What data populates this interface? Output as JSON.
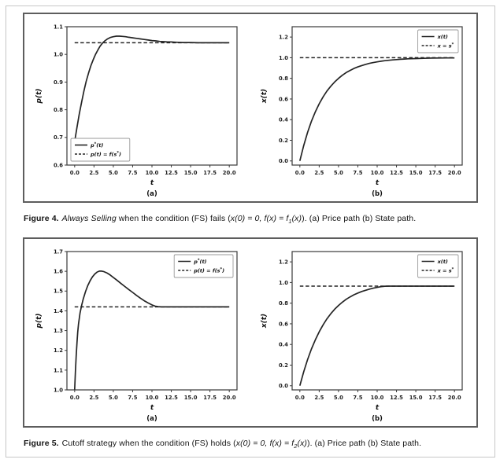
{
  "page": {
    "captions": {
      "fig4": {
        "segments": [
          {
            "t": "Figure 4.",
            "s": "bold"
          },
          {
            "t": "Always Selling",
            "s": "italic"
          },
          {
            "t": " when the condition (FS) fails (",
            "s": "normal"
          },
          {
            "t": "x(0) = 0, f(x) = f",
            "s": "mathit"
          },
          {
            "t": "1",
            "s": "sub"
          },
          {
            "t": "(x)",
            "s": "mathit"
          },
          {
            "t": "). (a) Price path (b) State path.",
            "s": "normal"
          }
        ]
      },
      "fig5": {
        "segments": [
          {
            "t": "Figure 5.",
            "s": "bold"
          },
          {
            "t": "Cutoff strategy when the condition (FS) holds (",
            "s": "normal"
          },
          {
            "t": "x(0) = 0, f(x) = f",
            "s": "mathit"
          },
          {
            "t": "2",
            "s": "sub"
          },
          {
            "t": "(x)",
            "s": "mathit"
          },
          {
            "t": "). (a) Price path (b) State path.",
            "s": "normal"
          }
        ]
      }
    },
    "colors": {
      "line": "#242424",
      "frame": "#3a3a3a",
      "panel_border": "#5d5d5d",
      "page_border": "#c6c6c6",
      "legend_border": "#999999"
    }
  },
  "chart_data": [
    {
      "id": "fig4a-price-path",
      "type": "line",
      "figure": "Figure 4",
      "panel_label": "(a)",
      "xlabel": "t",
      "ylabel": "p(t)",
      "xlim": [
        -1,
        21
      ],
      "ylim": [
        0.6,
        1.1
      ],
      "xticks": [
        0,
        2.5,
        5,
        7.5,
        10,
        12.5,
        15,
        17.5,
        20
      ],
      "yticks": [
        0.6,
        0.7,
        0.8,
        0.9,
        1.0,
        1.1
      ],
      "legend_position": "lower-left",
      "series": [
        {
          "name": "p*(t)",
          "dash": false,
          "points": [
            [
              0,
              0.685
            ],
            [
              0.3,
              0.737
            ],
            [
              0.6,
              0.785
            ],
            [
              0.9,
              0.828
            ],
            [
              1.2,
              0.868
            ],
            [
              1.5,
              0.903
            ],
            [
              1.8,
              0.933
            ],
            [
              2.1,
              0.959
            ],
            [
              2.4,
              0.981
            ],
            [
              2.7,
              1.0
            ],
            [
              3.0,
              1.016
            ],
            [
              3.3,
              1.03
            ],
            [
              3.6,
              1.041
            ],
            [
              3.9,
              1.049
            ],
            [
              4.2,
              1.055
            ],
            [
              4.6,
              1.061
            ],
            [
              5.0,
              1.064
            ],
            [
              5.4,
              1.066
            ],
            [
              5.8,
              1.066
            ],
            [
              6.2,
              1.065
            ],
            [
              6.6,
              1.064
            ],
            [
              7.0,
              1.062
            ],
            [
              7.5,
              1.06
            ],
            [
              8.0,
              1.058
            ],
            [
              8.5,
              1.056
            ],
            [
              9.0,
              1.054
            ],
            [
              9.5,
              1.052
            ],
            [
              10.0,
              1.05
            ],
            [
              10.5,
              1.049
            ],
            [
              11.0,
              1.047
            ],
            [
              11.5,
              1.046
            ],
            [
              12.0,
              1.045
            ],
            [
              12.5,
              1.045
            ],
            [
              13.0,
              1.044
            ],
            [
              14.0,
              1.043
            ],
            [
              15.0,
              1.043
            ],
            [
              16.0,
              1.042
            ],
            [
              17.0,
              1.042
            ],
            [
              18.0,
              1.042
            ],
            [
              19.0,
              1.042
            ],
            [
              20.0,
              1.042
            ]
          ]
        },
        {
          "name": "p(t) = f(s*)",
          "dash": true,
          "points": [
            [
              0,
              1.042
            ],
            [
              20,
              1.042
            ]
          ]
        }
      ]
    },
    {
      "id": "fig4b-state-path",
      "type": "line",
      "figure": "Figure 4",
      "panel_label": "(b)",
      "xlabel": "t",
      "ylabel": "x(t)",
      "xlim": [
        -1,
        21
      ],
      "ylim": [
        -0.04,
        1.3
      ],
      "xticks": [
        0,
        2.5,
        5,
        7.5,
        10,
        12.5,
        15,
        17.5,
        20
      ],
      "yticks": [
        0.0,
        0.2,
        0.4,
        0.6,
        0.8,
        1.0,
        1.2
      ],
      "legend_position": "upper-right",
      "series": [
        {
          "name": "x(t)",
          "dash": false,
          "points": [
            [
              0,
              0
            ],
            [
              0.5,
              0.149
            ],
            [
              1,
              0.276
            ],
            [
              1.5,
              0.384
            ],
            [
              2,
              0.476
            ],
            [
              2.5,
              0.554
            ],
            [
              3,
              0.62
            ],
            [
              3.5,
              0.677
            ],
            [
              4,
              0.724
            ],
            [
              4.5,
              0.765
            ],
            [
              5,
              0.8
            ],
            [
              5.5,
              0.83
            ],
            [
              6,
              0.856
            ],
            [
              6.5,
              0.877
            ],
            [
              7,
              0.896
            ],
            [
              7.5,
              0.911
            ],
            [
              8,
              0.924
            ],
            [
              8.5,
              0.935
            ],
            [
              9,
              0.945
            ],
            [
              9.5,
              0.953
            ],
            [
              10,
              0.96
            ],
            [
              10.5,
              0.966
            ],
            [
              11,
              0.971
            ],
            [
              11.5,
              0.975
            ],
            [
              12,
              0.979
            ],
            [
              12.5,
              0.982
            ],
            [
              13,
              0.985
            ],
            [
              13.5,
              0.987
            ],
            [
              14,
              0.989
            ],
            [
              15,
              0.992
            ],
            [
              16,
              0.994
            ],
            [
              17,
              0.996
            ],
            [
              18,
              0.997
            ],
            [
              19,
              0.998
            ],
            [
              20,
              0.998
            ]
          ]
        },
        {
          "name": "x = s*",
          "dash": true,
          "points": [
            [
              0,
              1.0
            ],
            [
              20,
              1.0
            ]
          ]
        }
      ]
    },
    {
      "id": "fig5a-price-path",
      "type": "line",
      "figure": "Figure 5",
      "panel_label": "(a)",
      "xlabel": "t",
      "ylabel": "p(t)",
      "xlim": [
        -1,
        21
      ],
      "ylim": [
        1.0,
        1.7
      ],
      "xticks": [
        0,
        2.5,
        5,
        7.5,
        10,
        12.5,
        15,
        17.5,
        20
      ],
      "yticks": [
        1.0,
        1.1,
        1.2,
        1.3,
        1.4,
        1.5,
        1.6,
        1.7
      ],
      "legend_position": "upper-right",
      "series": [
        {
          "name": "p*(t)",
          "dash": false,
          "points": [
            [
              0,
              1.0
            ],
            [
              0.1,
              1.095
            ],
            [
              0.2,
              1.175
            ],
            [
              0.3,
              1.24
            ],
            [
              0.4,
              1.292
            ],
            [
              0.5,
              1.333
            ],
            [
              0.7,
              1.39
            ],
            [
              0.9,
              1.428
            ],
            [
              1.1,
              1.458
            ],
            [
              1.4,
              1.497
            ],
            [
              1.7,
              1.528
            ],
            [
              2.0,
              1.553
            ],
            [
              2.3,
              1.572
            ],
            [
              2.6,
              1.586
            ],
            [
              2.9,
              1.596
            ],
            [
              3.2,
              1.601
            ],
            [
              3.5,
              1.601
            ],
            [
              3.8,
              1.598
            ],
            [
              4.2,
              1.591
            ],
            [
              4.6,
              1.581
            ],
            [
              5.0,
              1.569
            ],
            [
              5.5,
              1.554
            ],
            [
              6.0,
              1.538
            ],
            [
              6.5,
              1.523
            ],
            [
              7.0,
              1.508
            ],
            [
              7.5,
              1.493
            ],
            [
              8.0,
              1.478
            ],
            [
              8.5,
              1.464
            ],
            [
              9.0,
              1.451
            ],
            [
              9.5,
              1.44
            ],
            [
              10.0,
              1.43
            ],
            [
              10.4,
              1.424
            ],
            [
              10.8,
              1.421
            ],
            [
              11.2,
              1.42
            ],
            [
              12.0,
              1.42
            ],
            [
              13.0,
              1.42
            ],
            [
              14.0,
              1.42
            ],
            [
              15.0,
              1.42
            ],
            [
              16.0,
              1.42
            ],
            [
              17.0,
              1.42
            ],
            [
              18.0,
              1.42
            ],
            [
              19.0,
              1.42
            ],
            [
              20.0,
              1.42
            ]
          ]
        },
        {
          "name": "p(t) = f(s*)",
          "dash": true,
          "points": [
            [
              0,
              1.42
            ],
            [
              20,
              1.42
            ]
          ]
        }
      ]
    },
    {
      "id": "fig5b-state-path",
      "type": "line",
      "figure": "Figure 5",
      "panel_label": "(b)",
      "xlabel": "t",
      "ylabel": "x(t)",
      "xlim": [
        -1,
        21
      ],
      "ylim": [
        -0.04,
        1.3
      ],
      "xticks": [
        0,
        2.5,
        5,
        7.5,
        10,
        12.5,
        15,
        17.5,
        20
      ],
      "yticks": [
        0.0,
        0.2,
        0.4,
        0.6,
        0.8,
        1.0,
        1.2
      ],
      "legend_position": "upper-right",
      "series": [
        {
          "name": "x(t)",
          "dash": false,
          "points": [
            [
              0,
              0
            ],
            [
              0.5,
              0.135
            ],
            [
              1,
              0.253
            ],
            [
              1.5,
              0.356
            ],
            [
              2,
              0.445
            ],
            [
              2.5,
              0.523
            ],
            [
              3,
              0.59
            ],
            [
              3.5,
              0.648
            ],
            [
              4,
              0.698
            ],
            [
              4.5,
              0.741
            ],
            [
              5,
              0.778
            ],
            [
              5.5,
              0.81
            ],
            [
              6,
              0.838
            ],
            [
              6.5,
              0.861
            ],
            [
              7,
              0.881
            ],
            [
              7.5,
              0.898
            ],
            [
              8,
              0.913
            ],
            [
              8.5,
              0.925
            ],
            [
              9,
              0.936
            ],
            [
              9.5,
              0.945
            ],
            [
              10,
              0.953
            ],
            [
              10.5,
              0.96
            ],
            [
              11,
              0.964
            ],
            [
              11.5,
              0.965
            ],
            [
              12,
              0.965
            ],
            [
              13,
              0.965
            ],
            [
              14,
              0.965
            ],
            [
              15,
              0.965
            ],
            [
              16,
              0.965
            ],
            [
              17,
              0.965
            ],
            [
              18,
              0.965
            ],
            [
              19,
              0.965
            ],
            [
              20,
              0.965
            ]
          ]
        },
        {
          "name": "x = s*",
          "dash": true,
          "points": [
            [
              0,
              0.965
            ],
            [
              20,
              0.965
            ]
          ]
        }
      ]
    }
  ]
}
